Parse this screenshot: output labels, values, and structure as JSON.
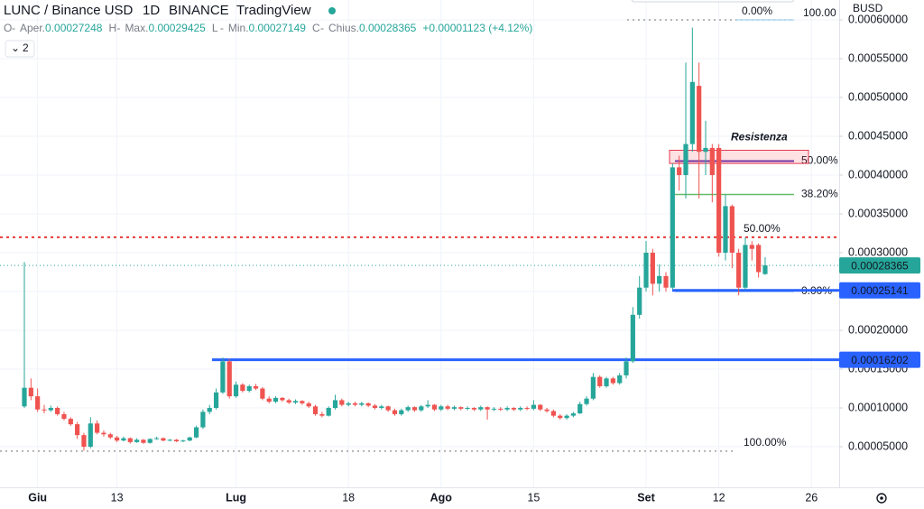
{
  "header": {
    "symbol": "LUNC / Binance USD",
    "interval": "1D",
    "exchange": "BINANCE",
    "source": "TradingView",
    "ohlc": [
      {
        "key": "O",
        "label": "Aper.",
        "value": "0.00027248"
      },
      {
        "key": "H",
        "label": "Max.",
        "value": "0.00029425"
      },
      {
        "key": "L",
        "label": "Min.",
        "value": "0.00027149"
      },
      {
        "key": "C",
        "label": "Chius.",
        "value": "0.00028365"
      }
    ],
    "change": "+0.00001123 (+4.12%)",
    "indicators": "2",
    "currency": "BUSD"
  },
  "chart_data": {
    "type": "candlestick",
    "up_color": "#26a69a",
    "down_color": "#ef5350",
    "grid": true,
    "categories": [
      null,
      null,
      "Giu",
      null,
      null,
      null,
      null,
      null,
      null,
      null,
      null,
      null,
      null,
      null,
      "13",
      null,
      null,
      null,
      null,
      null,
      null,
      null,
      null,
      null,
      null,
      null,
      null,
      null,
      null,
      null,
      null,
      null,
      "Lug",
      null,
      null,
      null,
      null,
      null,
      null,
      null,
      null,
      null,
      null,
      null,
      null,
      null,
      null,
      null,
      null,
      "18",
      null,
      null,
      null,
      null,
      null,
      null,
      null,
      null,
      null,
      null,
      null,
      null,
      null,
      "Ago",
      null,
      null,
      null,
      null,
      null,
      null,
      null,
      null,
      null,
      null,
      null,
      null,
      null,
      "15",
      null,
      null,
      null,
      null,
      null,
      null,
      null,
      null,
      null,
      null,
      null,
      null,
      null,
      null,
      null,
      null,
      "Set",
      null,
      null,
      null,
      null,
      null,
      null,
      null,
      null,
      null,
      null,
      "12",
      null,
      null,
      null,
      null,
      null,
      null,
      null,
      null,
      null,
      null,
      null,
      null,
      null,
      "26",
      null,
      null,
      null,
      null
    ],
    "open": [
      0.000102,
      0.000126,
      0.000115,
      9.8e-05,
      9.7e-05,
      0.0001,
      9.2e-05,
      8.6e-05,
      7.9e-05,
      6.5e-05,
      5e-05,
      8e-05,
      6.8e-05,
      6.6e-05,
      6.2e-05,
      5.8e-05,
      6.1e-05,
      5.6e-05,
      5.9e-05,
      5.5e-05,
      6e-05,
      6.1e-05,
      5.8e-05,
      5.9e-05,
      5.7e-05,
      5.8e-05,
      6.2e-05,
      7.5e-05,
      9.5e-05,
      0.0001,
      0.00012,
      0.00016,
      0.000115,
      0.00013,
      0.000122,
      0.000128,
      0.000125,
      0.000112,
      0.000108,
      0.000113,
      0.00011,
      0.000107,
      0.000109,
      0.000106,
      0.000102,
      9.2e-05,
      9e-05,
      0.0001,
      0.00011,
      0.000104,
      0.000106,
      0.000104,
      0.000106,
      0.000103,
      0.0001,
      0.000102,
      9.7e-05,
      9.2e-05,
      9.7e-05,
      0.000101,
      9.7e-05,
      0.000102,
      0.000104,
      9.8e-05,
      0.000102,
      9.9e-05,
      0.000101,
      9.9e-05,
      0.0001,
      9.8e-05,
      0.000101,
      9.8e-05,
      9.9e-05,
      9.8e-05,
      0.0001,
      9.8e-05,
      0.0001,
      9.9e-05,
      0.000104,
      9.8e-05,
      9.6e-05,
      9e-05,
      8.7e-05,
      9e-05,
      9.3e-05,
      0.000105,
      0.000112,
      0.00014,
      0.000128,
      0.000138,
      0.000132,
      0.000142,
      0.00016,
      0.00022,
      0.000255,
      0.0003,
      0.00026,
      0.00027,
      0.000255,
      0.00041,
      0.0004,
      0.00044,
      0.000515,
      0.00043,
      0.000435,
      0.000435,
      0.0003,
      0.00036,
      0.0003,
      0.000255,
      0.00031,
      0.00031,
      0.00027248,
      null,
      null,
      null,
      null,
      null,
      null,
      null,
      null,
      null,
      null,
      null
    ],
    "high": [
      0.000288,
      0.000138,
      0.000125,
      0.000104,
      0.000103,
      0.000102,
      9.5e-05,
      8.8e-05,
      8.2e-05,
      6.8e-05,
      8.8e-05,
      8.4e-05,
      7.1e-05,
      6.8e-05,
      6.4e-05,
      6.3e-05,
      6.2e-05,
      6.1e-05,
      6e-05,
      6.1e-05,
      6.3e-05,
      6.2e-05,
      6e-05,
      6e-05,
      5.9e-05,
      6.3e-05,
      7.7e-05,
      9.8e-05,
      0.000104,
      0.000125,
      0.000165,
      0.000163,
      0.000134,
      0.000132,
      0.00013,
      0.000131,
      0.000127,
      0.000115,
      0.000115,
      0.000114,
      0.000112,
      0.000111,
      0.00011,
      0.000108,
      0.000104,
      9.5e-05,
      0.000102,
      0.000117,
      0.000112,
      0.000108,
      0.000108,
      0.000108,
      0.000107,
      0.000105,
      0.000104,
      0.000103,
      9.9e-05,
      9.9e-05,
      0.000103,
      0.000102,
      0.000104,
      0.00011,
      0.000105,
      0.000104,
      0.000104,
      0.000103,
      0.000102,
      0.000102,
      0.000101,
      0.000103,
      0.000102,
      0.000101,
      0.000101,
      0.000102,
      0.000101,
      0.000102,
      0.000102,
      0.00011,
      0.000105,
      0.0001,
      9.8e-05,
      9.2e-05,
      9.2e-05,
      9.5e-05,
      0.000108,
      0.000115,
      0.000145,
      0.000142,
      0.00014,
      0.00014,
      0.000145,
      0.000165,
      0.00023,
      0.00027,
      0.000315,
      0.000305,
      0.000285,
      0.000275,
      0.000415,
      0.000425,
      0.000545,
      0.00059,
      0.000545,
      0.00047,
      0.00044,
      0.00044,
      0.000375,
      0.000362,
      0.000305,
      0.00032,
      0.000315,
      0.000312,
      0.00029425,
      null,
      null,
      null,
      null,
      null,
      null,
      null,
      null,
      null,
      null,
      null
    ],
    "low": [
      0.0001,
      0.00011,
      9.5e-05,
      9.3e-05,
      9.5e-05,
      9e-05,
      8.4e-05,
      7.7e-05,
      6e-05,
      4.5e-05,
      4.8e-05,
      6.6e-05,
      6.3e-05,
      6e-05,
      5.6e-05,
      5.7e-05,
      5.4e-05,
      5.5e-05,
      5.4e-05,
      5.4e-05,
      5.9e-05,
      5.7e-05,
      5.7e-05,
      5.6e-05,
      5.6e-05,
      5.7e-05,
      6.1e-05,
      7.3e-05,
      9.2e-05,
      9.8e-05,
      0.000118,
      0.000112,
      0.000113,
      0.00012,
      0.00012,
      0.000123,
      0.00011,
      0.000106,
      0.000106,
      0.000108,
      0.000105,
      0.000105,
      0.000104,
      0.0001,
      9e-05,
      8.8e-05,
      8.9e-05,
      9.8e-05,
      0.000102,
      0.000102,
      0.000102,
      0.000102,
      0.000101,
      9.8e-05,
      9.8e-05,
      9.5e-05,
      9e-05,
      9e-05,
      9.5e-05,
      9.5e-05,
      9.5e-05,
      0.0001,
      9.6e-05,
      9.6e-05,
      9.7e-05,
      9.7e-05,
      9.7e-05,
      9.7e-05,
      9.6e-05,
      9.6e-05,
      8.5e-05,
      9.6e-05,
      9.6e-05,
      9.6e-05,
      9.6e-05,
      9.6e-05,
      9.7e-05,
      9.7e-05,
      9.6e-05,
      9.4e-05,
      8.8e-05,
      8.5e-05,
      8.5e-05,
      8.8e-05,
      9.2e-05,
      0.000103,
      0.00011,
      0.000126,
      0.000126,
      0.00013,
      0.00013,
      0.000138,
      0.000158,
      0.000215,
      0.00025,
      0.000245,
      0.00025,
      0.00025,
      0.000252,
      0.00038,
      0.00037,
      0.00043,
      0.00037,
      0.0004,
      0.000365,
      0.000295,
      0.00029,
      0.00028,
      0.000245,
      0.000252,
      0.00029,
      0.000268,
      0.00027149,
      null,
      null,
      null,
      null,
      null,
      null,
      null,
      null,
      null,
      null,
      null
    ],
    "close": [
      0.000126,
      0.000115,
      9.8e-05,
      9.7e-05,
      0.0001,
      9.2e-05,
      8.6e-05,
      7.9e-05,
      6.5e-05,
      5e-05,
      8e-05,
      6.8e-05,
      6.6e-05,
      6.2e-05,
      5.8e-05,
      6.1e-05,
      5.6e-05,
      5.9e-05,
      5.5e-05,
      6e-05,
      6.1e-05,
      5.8e-05,
      5.9e-05,
      5.7e-05,
      5.8e-05,
      6.2e-05,
      7.5e-05,
      9.5e-05,
      0.0001,
      0.00012,
      0.00016,
      0.000115,
      0.00013,
      0.000122,
      0.000128,
      0.000125,
      0.000112,
      0.000108,
      0.000113,
      0.00011,
      0.000107,
      0.000109,
      0.000106,
      0.000102,
      9.2e-05,
      9e-05,
      0.0001,
      0.00011,
      0.000104,
      0.000106,
      0.000104,
      0.000106,
      0.000103,
      0.0001,
      0.000102,
      9.7e-05,
      9.2e-05,
      9.7e-05,
      0.000101,
      9.7e-05,
      0.000102,
      0.000104,
      9.8e-05,
      0.000102,
      9.9e-05,
      0.000101,
      9.9e-05,
      0.0001,
      9.8e-05,
      0.000101,
      9.8e-05,
      9.9e-05,
      9.8e-05,
      0.0001,
      9.8e-05,
      0.0001,
      9.9e-05,
      0.000104,
      9.8e-05,
      9.6e-05,
      9e-05,
      8.7e-05,
      9e-05,
      9.3e-05,
      0.000105,
      0.000112,
      0.00014,
      0.000128,
      0.000138,
      0.000132,
      0.000142,
      0.00016,
      0.00022,
      0.000255,
      0.0003,
      0.00026,
      0.00027,
      0.000255,
      0.00041,
      0.0004,
      0.00044,
      0.00052,
      0.00043,
      0.000435,
      0.0004,
      0.0003,
      0.00036,
      0.0003,
      0.000255,
      0.00031,
      0.000305,
      0.000275,
      0.00028365,
      null,
      null,
      null,
      null,
      null,
      null,
      null,
      null,
      null,
      null,
      null
    ],
    "ylim": [
      -2.3e-06,
      0.0006256
    ],
    "yticks": [
      {
        "value": 5e-05,
        "label": "0.00005000"
      },
      {
        "value": 0.0001,
        "label": "0.00010000"
      },
      {
        "value": 0.00015,
        "label": "0.00015000"
      },
      {
        "value": 0.0002,
        "label": "0.00020000"
      },
      {
        "value": 0.00025,
        "label": "0.00025000"
      },
      {
        "value": 0.0003,
        "label": "0.00030000"
      },
      {
        "value": 0.00035,
        "label": "0.00035000"
      },
      {
        "value": 0.0004,
        "label": "0.00040000"
      },
      {
        "value": 0.00045,
        "label": "0.00045000"
      },
      {
        "value": 0.0005,
        "label": "0.00050000"
      },
      {
        "value": 0.00055,
        "label": "0.00055000"
      },
      {
        "value": 0.0006,
        "label": "0.00060000"
      }
    ],
    "price_lines": [
      {
        "value": 0.00028365,
        "color": "#26a69a",
        "style": "dotted"
      },
      {
        "value": 0.00025141,
        "color": "#2962ff",
        "style": "solid"
      },
      {
        "value": 0.00016202,
        "color": "#2962ff",
        "style": "solid"
      }
    ],
    "levels": [
      {
        "label": "0.00%",
        "value": 0.0006,
        "color": "#9e9e9e"
      },
      {
        "label": "100.00%",
        "value": 4.43e-05,
        "color": "#9e9e9e"
      },
      {
        "label": "50.00%",
        "value": 0.00032,
        "color": "#e53935"
      },
      {
        "label": "50.00%",
        "value": 0.000418,
        "color": "#5e35b1"
      },
      {
        "label": "38.20%",
        "value": 0.000375,
        "color": "#66bb6a"
      },
      {
        "label": "0.00%",
        "value": 0.00025,
        "color": "#90caf9"
      },
      {
        "label": "100.00",
        "value": 0.0006,
        "color": "#b3d9f2"
      }
    ],
    "annotation": {
      "text": "Resistenza",
      "color": "#e53950",
      "range": [
        0.000415,
        0.000432
      ]
    }
  }
}
